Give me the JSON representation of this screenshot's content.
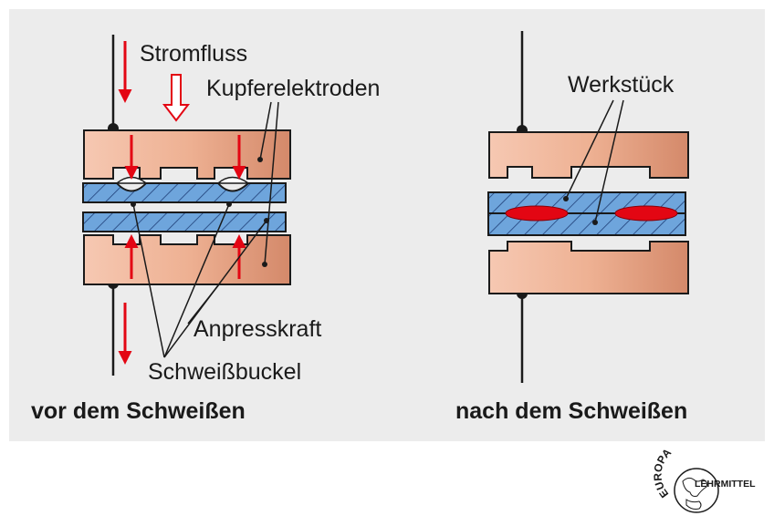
{
  "labels": {
    "current_flow": "Stromfluss",
    "copper_electrodes": "Kupferelektroden",
    "workpiece": "Werkstück",
    "pressing_force": "Anpresskraft",
    "weld_bumps": "Schweißbuckel"
  },
  "captions": {
    "before": "vor dem Schweißen",
    "after": "nach dem Schweißen"
  },
  "logo": {
    "arc_text": "EUROPA",
    "name": "LEHRMITTEL"
  },
  "colors": {
    "panel_bg": "#ececec",
    "electrode_light": "#f6c8b2",
    "electrode_dark": "#d4896a",
    "workpiece_fill": "#6ea5dc",
    "arrow_red": "#e30613",
    "weld_red": "#e30613"
  }
}
